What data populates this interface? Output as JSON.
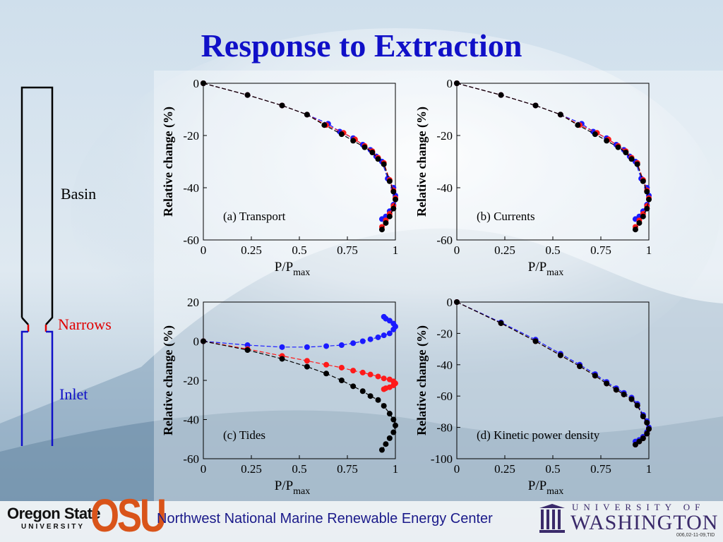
{
  "slide": {
    "title": "Response to Extraction",
    "schematic": {
      "basin_label": "Basin",
      "narrows_label": "Narrows",
      "inlet_label": "Inlet"
    },
    "footer": {
      "osu_name_line1": "Oregon State",
      "osu_name_line2": "UNIVERSITY",
      "osu_mark": "OSU",
      "center_name": "Northwest National Marine Renewable Energy Center",
      "uw_line1": "UNIVERSITY OF",
      "uw_line2": "WASHINGTON",
      "code": "006,02-11-09,TID"
    }
  },
  "colors": {
    "title": "#1010c8",
    "blue": "#1a1aff",
    "red": "#ff1a1a",
    "black": "#000000",
    "narrows": "#e00000",
    "inlet": "#1010c8"
  },
  "chart_data": [
    {
      "id": "a",
      "type": "scatter",
      "annotation": "(a) Transport",
      "xlabel": "P/P",
      "xlabel_sub": "max",
      "ylabel": "Relative change (%)",
      "xlim": [
        0,
        1
      ],
      "ylim": [
        -60,
        0
      ],
      "xticks": [
        "0",
        "0.25",
        "0.5",
        "0.75",
        "1"
      ],
      "yticks": [
        "0",
        "-20",
        "-40",
        "-60"
      ],
      "series": [
        {
          "color": "blue",
          "x": [
            0,
            0.23,
            0.41,
            0.54,
            0.65,
            0.71,
            0.78,
            0.83,
            0.87,
            0.9,
            0.93,
            0.96,
            0.99,
            1.0,
            0.99,
            0.97,
            0.95,
            0.93
          ],
          "y": [
            0,
            -4.5,
            -8.5,
            -12,
            -15.5,
            -18.5,
            -21,
            -23.5,
            -25.5,
            -28,
            -30,
            -36.5,
            -40,
            -43,
            -46.5,
            -49,
            -51,
            -52
          ]
        },
        {
          "color": "red",
          "x": [
            0,
            0.23,
            0.41,
            0.54,
            0.64,
            0.73,
            0.79,
            0.84,
            0.88,
            0.91,
            0.94,
            0.97,
            0.99,
            1.0,
            0.99,
            0.97,
            0.95,
            0.93
          ],
          "y": [
            0,
            -4.5,
            -8.5,
            -12,
            -16,
            -19,
            -21.5,
            -24,
            -26,
            -28.5,
            -30.5,
            -37,
            -41,
            -44,
            -47,
            -50,
            -52.5,
            -55
          ]
        },
        {
          "color": "black",
          "x": [
            0,
            0.23,
            0.41,
            0.54,
            0.63,
            0.72,
            0.78,
            0.84,
            0.88,
            0.91,
            0.94,
            0.97,
            0.99,
            1.0,
            0.99,
            0.97,
            0.95,
            0.93
          ],
          "y": [
            0,
            -4.5,
            -8.5,
            -12,
            -16,
            -19.5,
            -22,
            -24.5,
            -26.5,
            -29,
            -31,
            -37.5,
            -41.5,
            -44.5,
            -48,
            -51,
            -53.5,
            -56
          ]
        }
      ]
    },
    {
      "id": "b",
      "type": "scatter",
      "annotation": "(b) Currents",
      "xlabel": "P/P",
      "xlabel_sub": "max",
      "ylabel": "Relative change (%)",
      "xlim": [
        0,
        1
      ],
      "ylim": [
        -60,
        0
      ],
      "xticks": [
        "0",
        "0.25",
        "0.5",
        "0.75",
        "1"
      ],
      "yticks": [
        "0",
        "-20",
        "-40",
        "-60"
      ],
      "series": [
        {
          "color": "blue",
          "x": [
            0,
            0.23,
            0.41,
            0.54,
            0.65,
            0.71,
            0.78,
            0.83,
            0.87,
            0.9,
            0.93,
            0.96,
            0.99,
            1.0,
            0.99,
            0.97,
            0.95,
            0.93
          ],
          "y": [
            0,
            -4.5,
            -8.5,
            -12,
            -15.5,
            -18.5,
            -21,
            -23.5,
            -25.5,
            -28,
            -30,
            -36.5,
            -40,
            -43,
            -46.5,
            -49,
            -51,
            -52
          ]
        },
        {
          "color": "red",
          "x": [
            0,
            0.23,
            0.41,
            0.54,
            0.64,
            0.73,
            0.79,
            0.84,
            0.88,
            0.91,
            0.94,
            0.97,
            0.99,
            1.0,
            0.99,
            0.97,
            0.95,
            0.93
          ],
          "y": [
            0,
            -4.5,
            -8.5,
            -12,
            -16,
            -19,
            -21.5,
            -24,
            -26,
            -28.5,
            -30.5,
            -37,
            -41,
            -44,
            -47,
            -50,
            -52.5,
            -55
          ]
        },
        {
          "color": "black",
          "x": [
            0,
            0.23,
            0.41,
            0.54,
            0.63,
            0.72,
            0.78,
            0.84,
            0.88,
            0.91,
            0.94,
            0.97,
            0.99,
            1.0,
            0.99,
            0.97,
            0.95,
            0.93
          ],
          "y": [
            0,
            -4.5,
            -8.5,
            -12,
            -16,
            -19.5,
            -22,
            -24.5,
            -26.5,
            -29,
            -31,
            -37.5,
            -41.5,
            -44.5,
            -48,
            -51,
            -53.5,
            -56
          ]
        }
      ]
    },
    {
      "id": "c",
      "type": "scatter",
      "annotation": "(c) Tides",
      "xlabel": "P/P",
      "xlabel_sub": "max",
      "ylabel": "Relative change (%)",
      "xlim": [
        0,
        1
      ],
      "ylim": [
        -60,
        20
      ],
      "xticks": [
        "0",
        "0.25",
        "0.5",
        "0.75",
        "1"
      ],
      "yticks": [
        "20",
        "0",
        "-20",
        "-40",
        "-60"
      ],
      "series": [
        {
          "color": "blue",
          "x": [
            0,
            0.23,
            0.41,
            0.54,
            0.64,
            0.72,
            0.78,
            0.83,
            0.87,
            0.91,
            0.94,
            0.97,
            0.99,
            1.0,
            0.99,
            0.97,
            0.95,
            0.94
          ],
          "y": [
            0,
            -2,
            -3,
            -3,
            -2.5,
            -2,
            -1,
            0,
            1,
            2,
            3,
            4,
            6,
            7.5,
            9,
            10.5,
            11.5,
            12.5
          ]
        },
        {
          "color": "red",
          "x": [
            0,
            0.23,
            0.41,
            0.54,
            0.64,
            0.72,
            0.78,
            0.83,
            0.87,
            0.91,
            0.94,
            0.97,
            0.99,
            1.0,
            0.99,
            0.97,
            0.95,
            0.94
          ],
          "y": [
            0,
            -4,
            -7.5,
            -10,
            -12,
            -13.5,
            -15,
            -16,
            -17,
            -18,
            -19,
            -19.5,
            -20.5,
            -21.5,
            -22.5,
            -23.5,
            -24,
            -24.5
          ]
        },
        {
          "color": "black",
          "x": [
            0,
            0.23,
            0.41,
            0.54,
            0.64,
            0.72,
            0.78,
            0.83,
            0.87,
            0.91,
            0.94,
            0.97,
            0.99,
            1.0,
            0.99,
            0.97,
            0.95,
            0.93
          ],
          "y": [
            0,
            -4.5,
            -9,
            -13,
            -16.5,
            -20,
            -23,
            -25.5,
            -28,
            -30,
            -33,
            -37,
            -40,
            -43,
            -46.5,
            -49.5,
            -52.5,
            -55.5
          ]
        }
      ]
    },
    {
      "id": "d",
      "type": "scatter",
      "annotation": "(d) Kinetic power density",
      "xlabel": "P/P",
      "xlabel_sub": "max",
      "ylabel": "Relative change (%)",
      "xlim": [
        0,
        1
      ],
      "ylim": [
        -100,
        0
      ],
      "xticks": [
        "0",
        "0.25",
        "0.5",
        "0.75",
        "1"
      ],
      "yticks": [
        "0",
        "-20",
        "-40",
        "-60",
        "-80",
        "-100"
      ],
      "series": [
        {
          "color": "blue",
          "x": [
            0,
            0.23,
            0.41,
            0.54,
            0.64,
            0.72,
            0.78,
            0.83,
            0.87,
            0.91,
            0.94,
            0.97,
            0.99,
            1.0,
            0.99,
            0.97,
            0.95,
            0.93
          ],
          "y": [
            0,
            -13,
            -24,
            -33,
            -40,
            -46,
            -51,
            -55,
            -58,
            -61,
            -65,
            -72,
            -76,
            -80,
            -83,
            -86,
            -88,
            -89
          ]
        },
        {
          "color": "red",
          "x": [
            0,
            0.23,
            0.41,
            0.54,
            0.64,
            0.72,
            0.78,
            0.83,
            0.87,
            0.91,
            0.94,
            0.97,
            0.99,
            1.0,
            0.99,
            0.97,
            0.95,
            0.93
          ],
          "y": [
            0,
            -13.5,
            -25,
            -34,
            -41,
            -47,
            -52,
            -56,
            -59,
            -62,
            -66,
            -73,
            -77,
            -81,
            -84,
            -87,
            -89,
            -91
          ]
        },
        {
          "color": "black",
          "x": [
            0,
            0.23,
            0.41,
            0.54,
            0.64,
            0.72,
            0.78,
            0.83,
            0.87,
            0.91,
            0.94,
            0.97,
            0.99,
            1.0,
            0.99,
            0.97,
            0.95,
            0.93
          ],
          "y": [
            0,
            -13.5,
            -25,
            -34,
            -41,
            -47,
            -52,
            -56,
            -59,
            -62,
            -66,
            -73,
            -77,
            -81,
            -84,
            -87,
            -89,
            -91
          ]
        }
      ]
    }
  ]
}
